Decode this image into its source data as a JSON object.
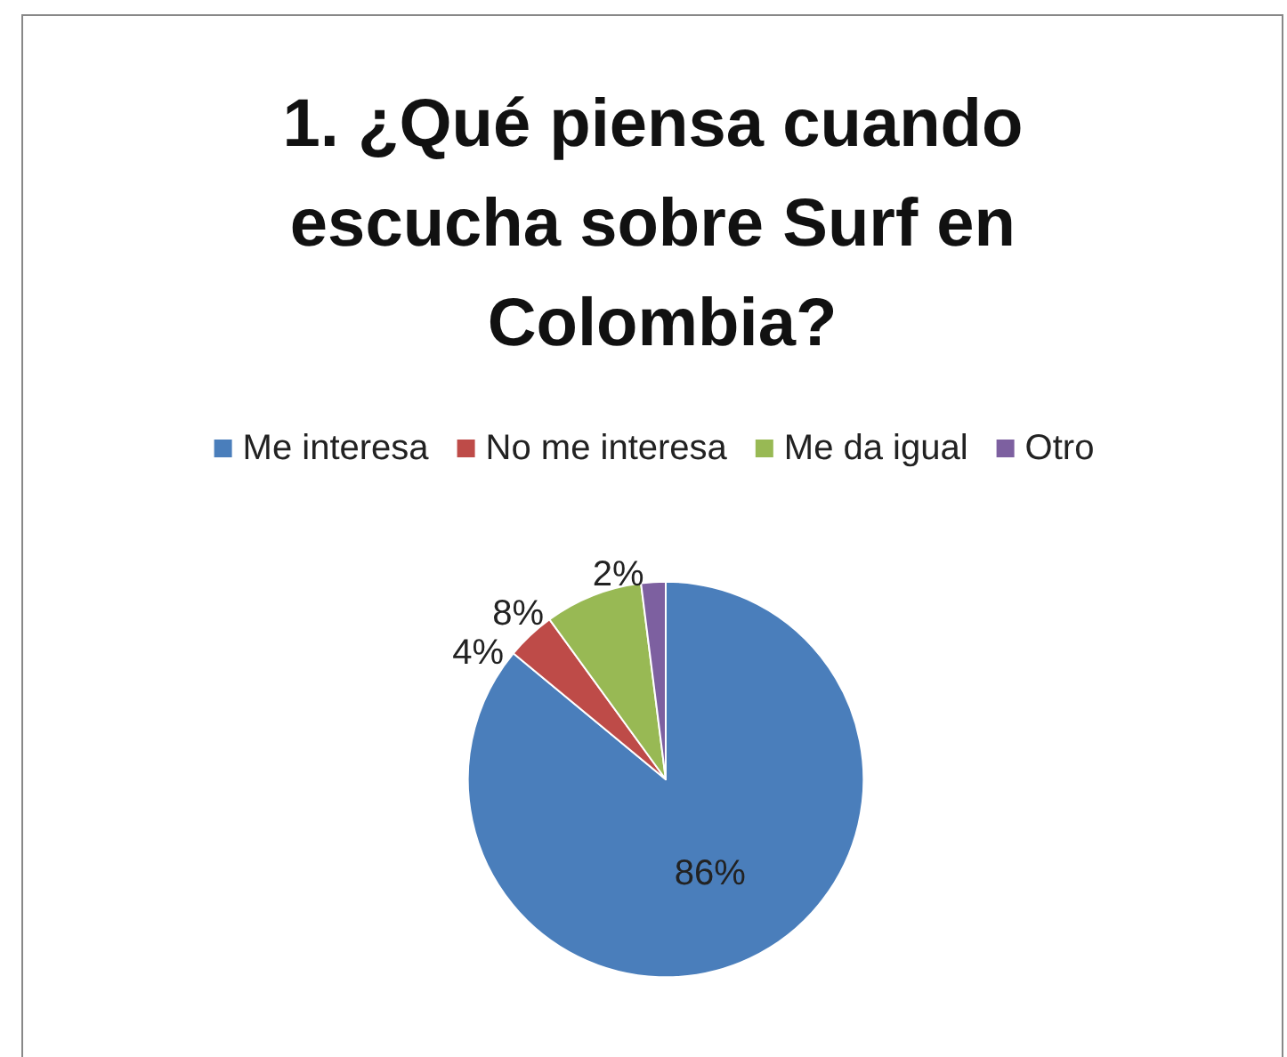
{
  "chart_data": {
    "type": "pie",
    "title": "1. ¿Qué piensa cuando escucha sobre Surf en Colombia?",
    "categories": [
      "Me interesa",
      "No me interesa",
      "Me da igual",
      "Otro"
    ],
    "values": [
      86,
      4,
      8,
      2
    ],
    "colors": [
      "#4a7ebb",
      "#be4b48",
      "#98b954",
      "#7d60a0"
    ],
    "value_labels": [
      "86%",
      "4%",
      "8%",
      "2%"
    ],
    "legend": "top"
  }
}
